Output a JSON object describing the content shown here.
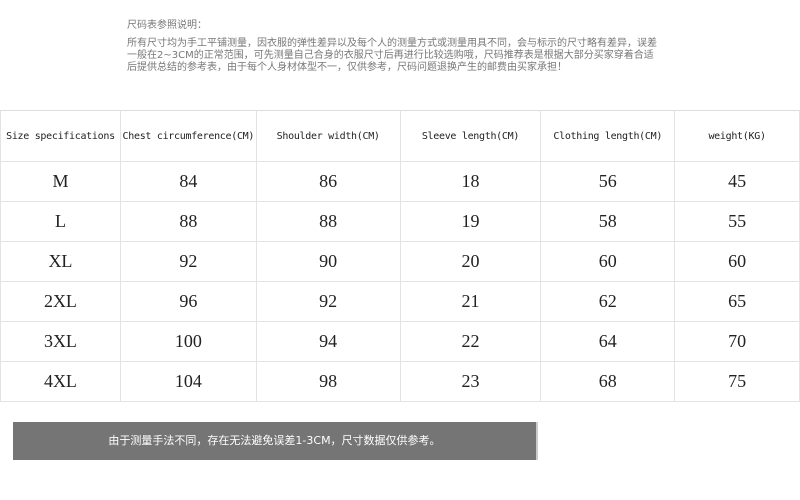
{
  "notes": {
    "title": "尺码表参照说明：",
    "lines": [
      "所有尺寸均为手工平铺测量，因衣服的弹性差异以及每个人的测量方式或测量用具不同，会与标示的尺寸略有差异，误差",
      "一般在2~3CM的正常范围，可先测量自己合身的衣服尺寸后再进行比较选购哦，尺码推荐表是根据大部分买家穿着合适",
      "后提供总结的参考表，由于每个人身材体型不一，仅供参考，尺码问题退换产生的邮费由买家承担！"
    ]
  },
  "table": {
    "headers": [
      "Size specifications",
      "Chest circumference(CM)",
      "Shoulder width(CM)",
      "Sleeve length(CM)",
      "Clothing length(CM)",
      "weight(KG)"
    ],
    "rows": [
      [
        "M",
        "84",
        "86",
        "18",
        "56",
        "45"
      ],
      [
        "L",
        "88",
        "88",
        "19",
        "58",
        "55"
      ],
      [
        "XL",
        "92",
        "90",
        "20",
        "60",
        "60"
      ],
      [
        "2XL",
        "96",
        "92",
        "21",
        "62",
        "65"
      ],
      [
        "3XL",
        "100",
        "94",
        "22",
        "64",
        "70"
      ],
      [
        "4XL",
        "104",
        "98",
        "23",
        "68",
        "75"
      ]
    ]
  },
  "footer_note": "由于测量手法不同，存在无法避免误差1-3CM，尺寸数据仅供参考。"
}
